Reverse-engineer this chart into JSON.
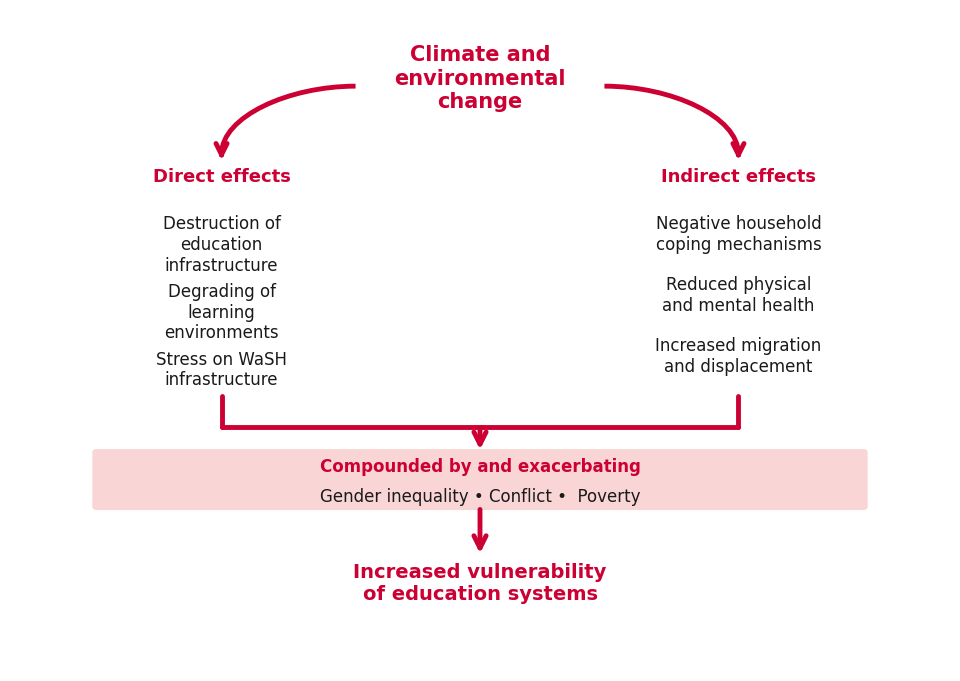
{
  "bg_color": "#ffffff",
  "red_color": "#cc0033",
  "light_red_bg": "#f9d5d5",
  "dark_text": "#1a1a1a",
  "title_text": "Climate and\nenvironmental\nchange",
  "direct_label": "Direct effects",
  "indirect_label": "Indirect effects",
  "direct_items": [
    "Destruction of\neducation\ninfrastructure",
    "Degrading of\nlearning\nenvironments",
    "Stress on WaSH\ninfrastructure"
  ],
  "indirect_items": [
    "Negative household\ncoping mechanisms",
    "Reduced physical\nand mental health",
    "Increased migration\nand displacement"
  ],
  "box_title": "Compounded by and exacerbating",
  "box_items": "Gender inequality • Conflict •  Poverty",
  "bottom_text": "Increased vulnerability\nof education systems",
  "figsize": [
    9.6,
    6.81
  ],
  "dpi": 100
}
